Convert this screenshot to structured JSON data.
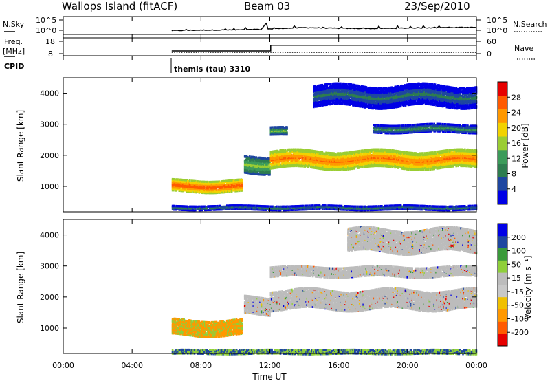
{
  "header": {
    "station": "Wallops Island (fitACF)",
    "beam": "Beam 03",
    "date": "23/Sep/2010"
  },
  "noise_panel": {
    "left_label": "N.Sky",
    "left_ticks": [
      "10^5",
      "10^0"
    ],
    "right_label": "N.Search",
    "right_ticks": [
      "10^5",
      "10^0"
    ]
  },
  "freq_panel": {
    "left_label_1": "Freq.",
    "left_label_2": "[MHz]",
    "left_ticks": [
      "18",
      "8"
    ],
    "right_label": "Nave",
    "right_ticks": [
      "60",
      "0"
    ]
  },
  "cpid_panel": {
    "label": "CPID",
    "mode": "themis (tau) 3310"
  },
  "colors": {
    "power": [
      "#0000e6",
      "#1e46a0",
      "#2e7d4f",
      "#3c9b5a",
      "#9acd32",
      "#f2d200",
      "#ff9800",
      "#ff5a00",
      "#e60000"
    ],
    "velocity": [
      "#e60000",
      "#ff5a00",
      "#ff9800",
      "#f0c000",
      "#c8c8c8",
      "#bcbcbc",
      "#8fcf3a",
      "#3a9a3a",
      "#1e46a0",
      "#0000e6"
    ],
    "ground_scatter": "#bcbcbc"
  },
  "chart_data": [
    {
      "type": "line",
      "name": "noise-timeseries",
      "x_unit": "hours UT",
      "xlim": [
        0,
        24
      ],
      "series": [
        {
          "name": "N.Sky",
          "x": [
            6.3,
            8,
            10,
            11.5,
            11.8,
            11.9,
            12.5,
            14,
            16,
            18,
            20,
            22,
            24
          ],
          "values": [
            0.3,
            0.5,
            0.6,
            0.8,
            3.5,
            1.0,
            1.2,
            1.6,
            1.3,
            1.2,
            1.4,
            1.6,
            1.7
          ]
        }
      ]
    },
    {
      "type": "line",
      "name": "frequency-and-nave",
      "x_unit": "hours UT",
      "xlim": [
        0,
        24
      ],
      "series": [
        {
          "name": "Freq.",
          "x": [
            6.3,
            12.05,
            12.05,
            24
          ],
          "values": [
            10.2,
            10.2,
            14.8,
            14.8
          ],
          "ylim": [
            8,
            18
          ]
        },
        {
          "name": "Nave",
          "x": [
            6.3,
            24
          ],
          "values": [
            6,
            6
          ],
          "ylim": [
            0,
            60
          ]
        }
      ]
    },
    {
      "type": "heatmap",
      "name": "power",
      "x_unit": "hours UT",
      "xlim": [
        0,
        24
      ],
      "ylim": [
        180,
        4500
      ],
      "ylabel": "Slant Range [km]",
      "xlabel": "Time UT",
      "yticks": [
        1000,
        2000,
        3000,
        4000
      ],
      "colorbar_label": "Power [dB]",
      "colorbar_ticks": [
        4,
        8,
        12,
        16,
        20,
        24,
        28
      ],
      "regions": [
        {
          "t0": 6.3,
          "t1": 10.4,
          "r_center": 1000,
          "r_half": 180,
          "level": 28
        },
        {
          "t0": 6.3,
          "t1": 24,
          "r_center": 300,
          "r_half": 70,
          "level": 8
        },
        {
          "t0": 10.5,
          "t1": 12.0,
          "r_center": 1700,
          "r_half": 260,
          "level": 16
        },
        {
          "t0": 12.0,
          "t1": 24,
          "r_center": 1850,
          "r_half": 260,
          "level": 26
        },
        {
          "t0": 12.0,
          "t1": 13.0,
          "r_center": 2750,
          "r_half": 130,
          "level": 14
        },
        {
          "t0": 18.0,
          "t1": 24,
          "r_center": 2850,
          "r_half": 130,
          "level": 11
        },
        {
          "t0": 14.5,
          "t1": 24,
          "r_center": 3900,
          "r_half": 320,
          "level": 8
        }
      ]
    },
    {
      "type": "heatmap",
      "name": "velocity",
      "x_unit": "hours UT",
      "xlim": [
        0,
        24
      ],
      "ylim": [
        180,
        4500
      ],
      "ylabel": "Slant Range [km]",
      "xlabel": "Time UT",
      "yticks": [
        1000,
        2000,
        3000,
        4000
      ],
      "colorbar_label": "Velocity [m s⁻¹]",
      "colorbar_ticks": [
        200,
        100,
        50,
        15,
        -15,
        -50,
        -100,
        -200
      ],
      "regions": [
        {
          "t0": 6.3,
          "t1": 10.4,
          "r_center": 1000,
          "r_half": 250,
          "level": -50
        },
        {
          "t0": 10.5,
          "t1": 12.0,
          "r_center": 1700,
          "r_half": 260,
          "level": 0
        },
        {
          "t0": 12.0,
          "t1": 24,
          "r_center": 1900,
          "r_half": 300,
          "level": 0
        },
        {
          "t0": 12.0,
          "t1": 24,
          "r_center": 2800,
          "r_half": 150,
          "level": 0
        },
        {
          "t0": 16.5,
          "t1": 24,
          "r_center": 3800,
          "r_half": 350,
          "level": 0
        },
        {
          "t0": 6.3,
          "t1": 24,
          "r_center": 220,
          "r_half": 50,
          "level": 50
        }
      ]
    }
  ],
  "x_axis": {
    "ticks": [
      "00:00",
      "04:00",
      "08:00",
      "12:00",
      "16:00",
      "20:00",
      "00:00"
    ],
    "label": "Time UT"
  }
}
